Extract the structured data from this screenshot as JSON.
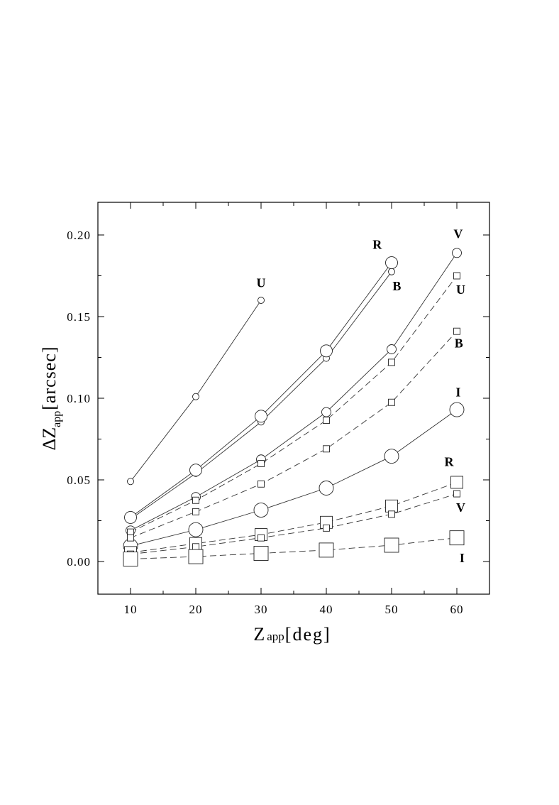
{
  "chart_data": {
    "type": "line",
    "title": "",
    "xlabel": {
      "main": "Z",
      "sub": "app",
      "rest": "[deg]"
    },
    "ylabel": {
      "main": "ΔZ",
      "sub": "app",
      "rest": "[arcsec]"
    },
    "xlim": [
      5,
      65
    ],
    "ylim": [
      -0.02,
      0.22
    ],
    "xticks": [
      10,
      20,
      30,
      40,
      50,
      60
    ],
    "xtick_labels": [
      "10",
      "20",
      "30",
      "40",
      "50",
      "60"
    ],
    "yticks": [
      0.0,
      0.05,
      0.1,
      0.15,
      0.2
    ],
    "ytick_labels": [
      "0.00",
      "0.05",
      "0.10",
      "0.15",
      "0.20"
    ],
    "legend": "none",
    "grid": false,
    "series": [
      {
        "name": "U",
        "line": "solid",
        "marker": "circle",
        "marker_size": "small",
        "x": [
          10,
          20,
          30
        ],
        "y": [
          0.049,
          0.101,
          0.16
        ]
      },
      {
        "name": "B",
        "line": "solid",
        "marker": "circle",
        "marker_size": "small",
        "x": [
          10,
          20,
          30,
          40,
          50
        ],
        "y": [
          0.026,
          0.054,
          0.0855,
          0.1245,
          0.1775
        ]
      },
      {
        "name": "R",
        "line": "solid",
        "marker": "circle",
        "marker_size": "large",
        "x": [
          10,
          20,
          30,
          40,
          50
        ],
        "y": [
          0.027,
          0.056,
          0.089,
          0.129,
          0.183
        ]
      },
      {
        "name": "V",
        "line": "solid",
        "marker": "circle",
        "marker_size": "medium",
        "x": [
          10,
          20,
          30,
          40,
          50,
          60
        ],
        "y": [
          0.019,
          0.0395,
          0.0625,
          0.0915,
          0.13,
          0.189
        ]
      },
      {
        "name": "I",
        "line": "solid",
        "marker": "circle",
        "marker_size": "xlarge",
        "x": [
          10,
          20,
          30,
          40,
          50,
          60
        ],
        "y": [
          0.0095,
          0.0195,
          0.0315,
          0.045,
          0.0645,
          0.093
        ]
      },
      {
        "name": "U",
        "line": "dashed",
        "marker": "square",
        "marker_size": "small",
        "x": [
          10,
          20,
          30,
          40,
          50,
          60
        ],
        "y": [
          0.018,
          0.0375,
          0.06,
          0.0865,
          0.122,
          0.175
        ]
      },
      {
        "name": "B",
        "line": "dashed",
        "marker": "square",
        "marker_size": "small",
        "x": [
          10,
          20,
          30,
          40,
          50,
          60
        ],
        "y": [
          0.0145,
          0.0305,
          0.0475,
          0.069,
          0.0975,
          0.141
        ]
      },
      {
        "name": "R",
        "line": "dashed",
        "marker": "square",
        "marker_size": "large",
        "x": [
          10,
          20,
          30,
          40,
          50,
          60
        ],
        "y": [
          0.0055,
          0.011,
          0.0165,
          0.024,
          0.034,
          0.0485
        ]
      },
      {
        "name": "V",
        "line": "dashed",
        "marker": "square",
        "marker_size": "small",
        "x": [
          10,
          20,
          30,
          40,
          50,
          60
        ],
        "y": [
          0.0045,
          0.009,
          0.0145,
          0.0205,
          0.029,
          0.0415
        ]
      },
      {
        "name": "I",
        "line": "dashed",
        "marker": "square",
        "marker_size": "xlarge",
        "x": [
          10,
          20,
          30,
          40,
          50,
          60
        ],
        "y": [
          0.0015,
          0.003,
          0.005,
          0.007,
          0.01,
          0.0145
        ]
      }
    ],
    "annotations": [
      {
        "text": "U",
        "x": 30,
        "y": 0.168
      },
      {
        "text": "R",
        "x": 47.8,
        "y": 0.1915
      },
      {
        "text": "B",
        "x": 50.8,
        "y": 0.166
      },
      {
        "text": "V",
        "x": 60.2,
        "y": 0.198
      },
      {
        "text": "U",
        "x": 60.6,
        "y": 0.164
      },
      {
        "text": "B",
        "x": 60.3,
        "y": 0.131
      },
      {
        "text": "I",
        "x": 60.2,
        "y": 0.101
      },
      {
        "text": "R",
        "x": 58.8,
        "y": 0.0585
      },
      {
        "text": "V",
        "x": 60.6,
        "y": 0.0305
      },
      {
        "text": "I",
        "x": 60.8,
        "y": -0.0005
      }
    ]
  }
}
